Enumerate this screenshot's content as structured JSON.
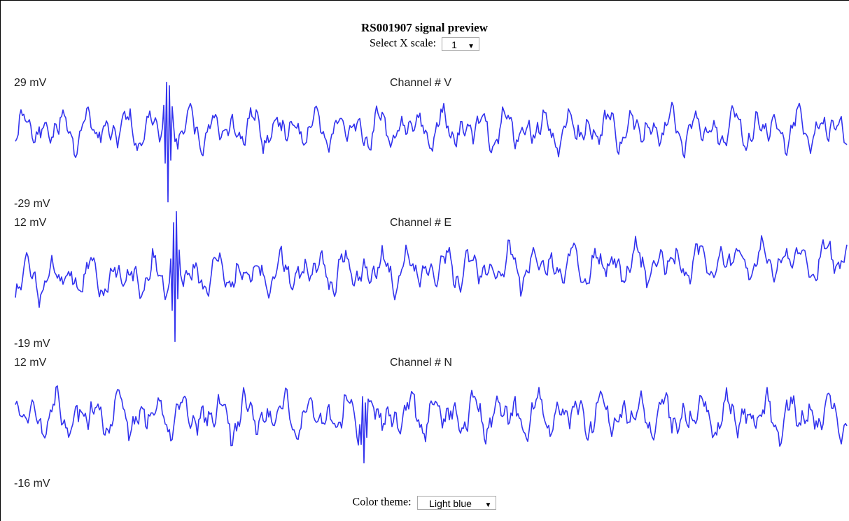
{
  "title": "RS001907 signal preview",
  "x_scale": {
    "label": "Select X scale:",
    "value": "1"
  },
  "color_theme": {
    "label": "Color theme:",
    "value": "Light blue"
  },
  "trace_color": "#3333ee",
  "channels": [
    {
      "name": "Channel # V",
      "ymax_label": "29 mV",
      "ymin_label": "-29 mV",
      "ymax": 29,
      "ymin": -29
    },
    {
      "name": "Channel # E",
      "ymax_label": "12 mV",
      "ymin_label": "-19 mV",
      "ymax": 12,
      "ymin": -19
    },
    {
      "name": "Channel # N",
      "ymax_label": "12 mV",
      "ymin_label": "-16 mV",
      "ymax": 12,
      "ymin": -16
    }
  ]
}
